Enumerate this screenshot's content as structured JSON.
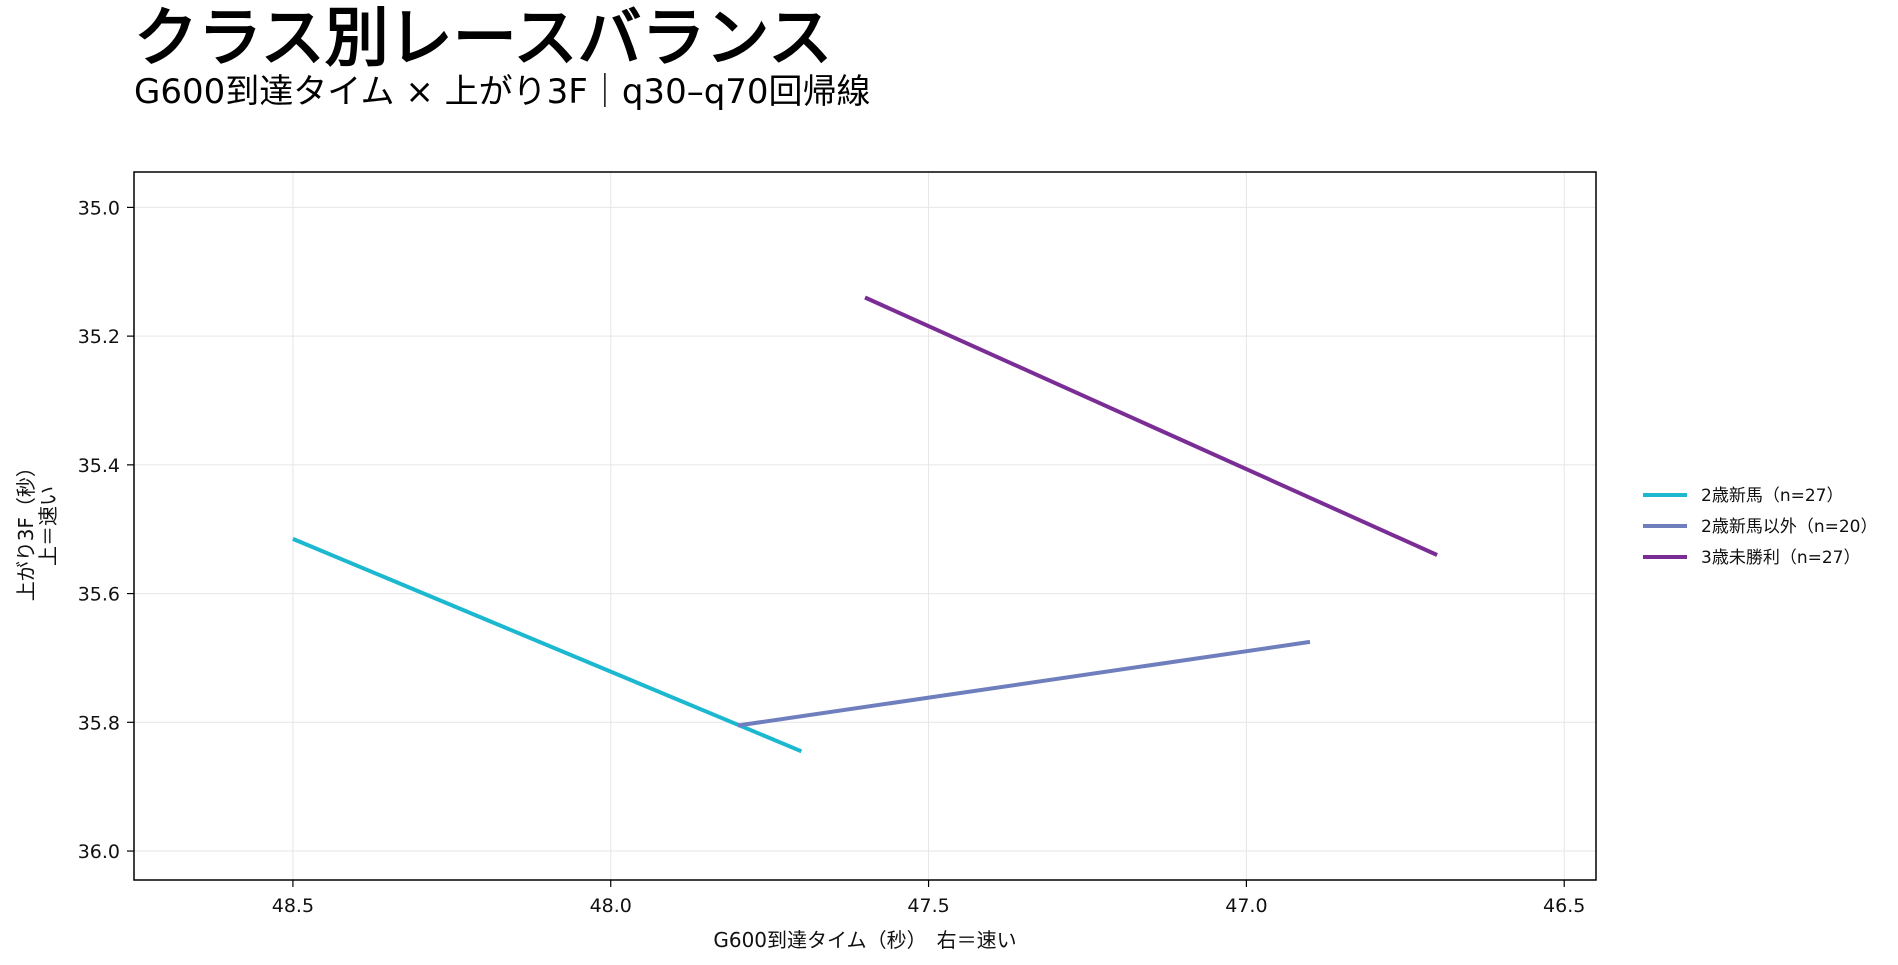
{
  "title": "クラス別レースバランス",
  "subtitle": "G600到達タイム × 上がり3F｜q30–q70回帰線",
  "chart_data": {
    "type": "line",
    "xlabel": "G600到達タイム（秒）　右＝速い",
    "ylabel_lines": [
      "上がり3F（秒）",
      "上＝速い"
    ],
    "xlim": [
      48.75,
      46.45
    ],
    "ylim": [
      36.045,
      34.945
    ],
    "x_inverted": true,
    "y_inverted": true,
    "xticks": [
      48.5,
      48.0,
      47.5,
      47.0,
      46.5
    ],
    "xtick_labels": [
      "48.5",
      "48.0",
      "47.5",
      "47.0",
      "46.5"
    ],
    "yticks": [
      35.0,
      35.2,
      35.4,
      35.6,
      35.8,
      36.0
    ],
    "ytick_labels": [
      "35.0",
      "35.2",
      "35.4",
      "35.6",
      "35.8",
      "36.0"
    ],
    "grid": true,
    "legend_position": "right",
    "series": [
      {
        "name": "2歳新馬（n=27）",
        "color": "#1cb8d0",
        "x": [
          48.5,
          47.7
        ],
        "y": [
          35.515,
          35.845
        ]
      },
      {
        "name": "2歳新馬以外（n=20）",
        "color": "#6f7fbd",
        "x": [
          47.8,
          46.9
        ],
        "y": [
          35.805,
          35.675
        ]
      },
      {
        "name": "3歳未勝利（n=27）",
        "color": "#7b2d96",
        "x": [
          47.6,
          46.7
        ],
        "y": [
          35.14,
          35.54
        ]
      }
    ]
  }
}
